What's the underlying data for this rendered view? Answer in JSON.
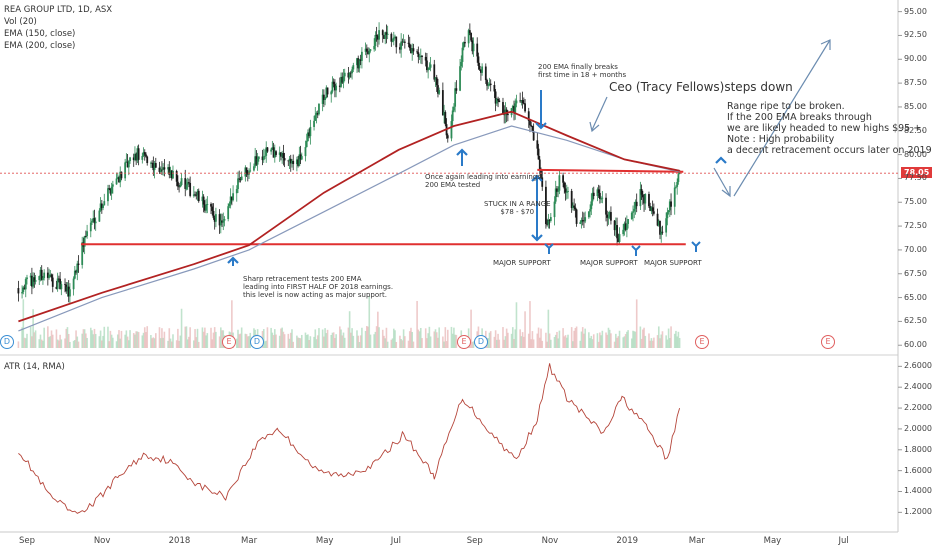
{
  "legend": {
    "symbol": "REA GROUP LTD, 1D, ASX",
    "vol": "Vol (20)",
    "ema150": "EMA (150, close)",
    "ema200": "EMA (200, close)",
    "atr": "ATR (14, RMA)"
  },
  "last_price_tag": "78.05",
  "x_axis_labels": [
    "Sep",
    "Nov",
    "2018",
    "Mar",
    "May",
    "Jul",
    "Sep",
    "Nov",
    "2019",
    "Mar",
    "May",
    "Jul"
  ],
  "y_axis_price_ticks": [
    "95.00",
    "92.50",
    "90.00",
    "87.50",
    "85.00",
    "82.50",
    "80.00",
    "77.50",
    "75.00",
    "72.50",
    "70.00",
    "67.50",
    "65.00",
    "62.50",
    "60.00"
  ],
  "y_axis_atr_ticks": [
    "2.6000",
    "2.4000",
    "2.2000",
    "2.0000",
    "1.8000",
    "1.6000",
    "1.4000",
    "1.2000"
  ],
  "annotations": {
    "ceo": "Ceo (Tracy Fellows)steps down",
    "outlook": "Range ripe to be broken.\nIf the 200 EMA breaks through\nwe are likely headed to new highs $95 +.\nNote : High probability\na decent retracement occurs later on 2019",
    "ema_breaks": "200 EMA finally breaks\nfirst time in 18 + months",
    "earnings": "Once again leading into earnings\n200 EMA tested",
    "range": "STUCK IN A RANGE\n$78 - $70",
    "support1": "MAJOR SUPPORT",
    "support2": "MAJOR SUPPORT",
    "support3": "MAJOR SUPPORT",
    "retrace": "Sharp retracement tests 200 EMA\nleading into FIRST HALF OF 2018 earnings.\nthis level is now acting as major support."
  },
  "events": [
    {
      "type": "dividend",
      "label": "D"
    },
    {
      "type": "earnings",
      "label": "E"
    },
    {
      "type": "dividend",
      "label": "D"
    },
    {
      "type": "earnings",
      "label": "E"
    },
    {
      "type": "dividend",
      "label": "D"
    },
    {
      "type": "earnings",
      "label": "E"
    },
    {
      "type": "earnings",
      "label": "E"
    }
  ],
  "colors": {
    "up": "#2e8b57",
    "down": "#1a1a1a",
    "ema150": "#8899bb",
    "ema200": "#b22222",
    "support": "#e03030",
    "atr": "#b5453a",
    "arrow_blue": "#2a7ac8",
    "arrow_grey": "#6b8cb0"
  },
  "chart_data": [
    {
      "type": "candlestick",
      "title": "REA GROUP LTD, 1D, ASX",
      "ylim": [
        59.5,
        95.8
      ],
      "x_axis": [
        "Sep",
        "Nov",
        "2018",
        "Mar",
        "May",
        "Jul",
        "Sep",
        "Nov",
        "2019",
        "Mar",
        "May",
        "Jul"
      ],
      "approx_close_path": [
        {
          "date": "2017-08-25",
          "close": 66.0
        },
        {
          "date": "2017-09-15",
          "close": 67.5
        },
        {
          "date": "2017-10-05",
          "close": 65.5
        },
        {
          "date": "2017-10-20",
          "close": 72.0
        },
        {
          "date": "2017-11-10",
          "close": 77.0
        },
        {
          "date": "2017-11-30",
          "close": 80.0
        },
        {
          "date": "2017-12-20",
          "close": 78.5
        },
        {
          "date": "2018-01-15",
          "close": 76.0
        },
        {
          "date": "2018-02-08",
          "close": 72.5
        },
        {
          "date": "2018-02-20",
          "close": 77.5
        },
        {
          "date": "2018-03-15",
          "close": 80.5
        },
        {
          "date": "2018-04-10",
          "close": 79.0
        },
        {
          "date": "2018-04-30",
          "close": 86.0
        },
        {
          "date": "2018-05-25",
          "close": 89.0
        },
        {
          "date": "2018-06-15",
          "close": 92.5
        },
        {
          "date": "2018-07-10",
          "close": 91.0
        },
        {
          "date": "2018-07-30",
          "close": 88.5
        },
        {
          "date": "2018-08-10",
          "close": 82.0
        },
        {
          "date": "2018-08-25",
          "close": 93.0
        },
        {
          "date": "2018-09-10",
          "close": 88.0
        },
        {
          "date": "2018-09-25",
          "close": 84.0
        },
        {
          "date": "2018-10-10",
          "close": 86.0
        },
        {
          "date": "2018-10-22",
          "close": 80.0
        },
        {
          "date": "2018-10-30",
          "close": 72.0
        },
        {
          "date": "2018-11-10",
          "close": 78.0
        },
        {
          "date": "2018-11-25",
          "close": 72.5
        },
        {
          "date": "2018-12-10",
          "close": 76.5
        },
        {
          "date": "2018-12-28",
          "close": 71.0
        },
        {
          "date": "2019-01-15",
          "close": 76.0
        },
        {
          "date": "2019-01-31",
          "close": 72.0
        },
        {
          "date": "2019-02-10",
          "close": 76.0
        },
        {
          "date": "2019-02-15",
          "close": 78.05
        }
      ],
      "ema200_path": [
        {
          "date": "2017-08-25",
          "value": 62.5
        },
        {
          "date": "2017-11-01",
          "value": 65.5
        },
        {
          "date": "2018-01-15",
          "value": 68.5
        },
        {
          "date": "2018-03-01",
          "value": 70.5
        },
        {
          "date": "2018-05-01",
          "value": 76.0
        },
        {
          "date": "2018-07-01",
          "value": 80.5
        },
        {
          "date": "2018-08-15",
          "value": 83.0
        },
        {
          "date": "2018-10-01",
          "value": 84.5
        },
        {
          "date": "2018-11-15",
          "value": 82.0
        },
        {
          "date": "2019-01-01",
          "value": 79.5
        },
        {
          "date": "2019-02-15",
          "value": 78.3
        }
      ],
      "ema150_path": [
        {
          "date": "2017-08-25",
          "value": 61.5
        },
        {
          "date": "2017-11-01",
          "value": 65.0
        },
        {
          "date": "2018-01-15",
          "value": 68.0
        },
        {
          "date": "2018-03-01",
          "value": 70.0
        },
        {
          "date": "2018-05-01",
          "value": 74.0
        },
        {
          "date": "2018-07-01",
          "value": 78.0
        },
        {
          "date": "2018-08-15",
          "value": 81.0
        },
        {
          "date": "2018-10-01",
          "value": 83.0
        },
        {
          "date": "2018-11-15",
          "value": 81.5
        },
        {
          "date": "2019-01-01",
          "value": 79.5
        },
        {
          "date": "2019-02-15",
          "value": 78.2
        }
      ],
      "horizontal_lines": [
        {
          "value": 70.6
        },
        {
          "value": 78.05
        }
      ]
    },
    {
      "type": "line",
      "title": "ATR (14, RMA)",
      "ylim": [
        1.05,
        2.68
      ],
      "series": [
        {
          "name": "ATR (14, RMA)",
          "points": [
            {
              "date": "2017-08-25",
              "value": 1.8
            },
            {
              "date": "2017-09-20",
              "value": 1.35
            },
            {
              "date": "2017-10-10",
              "value": 1.18
            },
            {
              "date": "2017-10-25",
              "value": 1.28
            },
            {
              "date": "2017-11-15",
              "value": 1.55
            },
            {
              "date": "2017-12-05",
              "value": 1.75
            },
            {
              "date": "2017-12-25",
              "value": 1.7
            },
            {
              "date": "2018-01-20",
              "value": 1.45
            },
            {
              "date": "2018-02-10",
              "value": 1.35
            },
            {
              "date": "2018-03-10",
              "value": 1.9
            },
            {
              "date": "2018-03-25",
              "value": 2.0
            },
            {
              "date": "2018-04-25",
              "value": 1.6
            },
            {
              "date": "2018-05-15",
              "value": 1.55
            },
            {
              "date": "2018-06-10",
              "value": 1.65
            },
            {
              "date": "2018-07-05",
              "value": 1.95
            },
            {
              "date": "2018-07-30",
              "value": 1.55
            },
            {
              "date": "2018-08-22",
              "value": 2.3
            },
            {
              "date": "2018-09-15",
              "value": 1.95
            },
            {
              "date": "2018-10-05",
              "value": 1.7
            },
            {
              "date": "2018-10-22",
              "value": 2.1
            },
            {
              "date": "2018-11-01",
              "value": 2.6
            },
            {
              "date": "2018-11-15",
              "value": 2.3
            },
            {
              "date": "2018-12-15",
              "value": 1.95
            },
            {
              "date": "2018-12-30",
              "value": 2.3
            },
            {
              "date": "2019-01-20",
              "value": 2.0
            },
            {
              "date": "2019-02-05",
              "value": 1.7
            },
            {
              "date": "2019-02-15",
              "value": 2.2
            }
          ]
        }
      ]
    }
  ]
}
